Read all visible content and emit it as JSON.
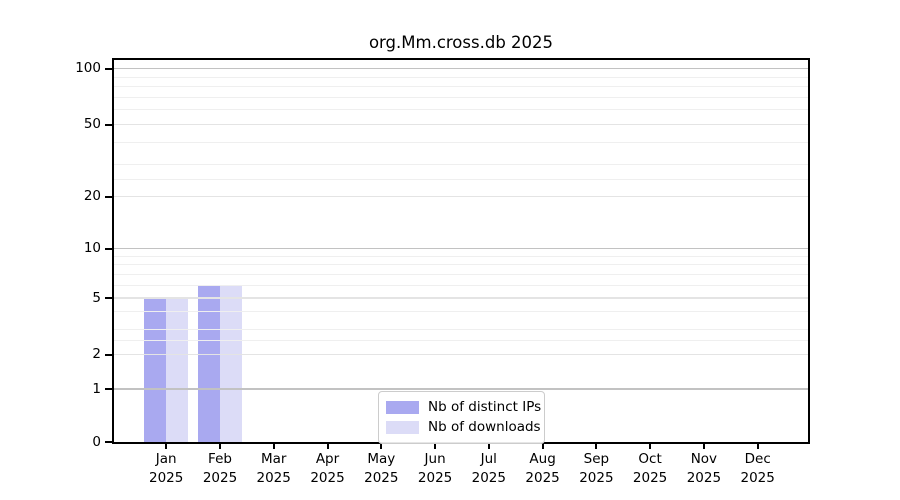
{
  "title": "org.Mm.cross.db 2025",
  "colors": {
    "distinct_ips_bar": "#a9a9f0",
    "downloads_bar": "#dcdcf7",
    "grid_strong": "#c2c2c2",
    "grid_medium": "#e4e4e4",
    "grid_minor": "#efefef",
    "axis": "#000000",
    "legend_border": "#cccccc",
    "background": "#ffffff"
  },
  "chart_data": {
    "type": "bar",
    "title": "org.Mm.cross.db 2025",
    "categories": [
      "Jan",
      "Feb",
      "Mar",
      "Apr",
      "May",
      "Jun",
      "Jul",
      "Aug",
      "Sep",
      "Oct",
      "Nov",
      "Dec"
    ],
    "x_sublabel": "2025",
    "series": [
      {
        "name": "Nb of distinct IPs",
        "color": "#a9a9f0",
        "values": [
          5,
          6,
          0,
          0,
          0,
          0,
          0,
          0,
          0,
          0,
          0,
          0
        ]
      },
      {
        "name": "Nb of downloads",
        "color": "#dcdcf7",
        "values": [
          5,
          6,
          0,
          0,
          0,
          0,
          0,
          0,
          0,
          0,
          0,
          0
        ]
      }
    ],
    "y_ticks": [
      0,
      1,
      2,
      5,
      10,
      20,
      50,
      100
    ],
    "y_grid_strong": [
      1,
      10,
      100
    ],
    "y_grid_minor": [
      2.5,
      3,
      4,
      6,
      7,
      8,
      9,
      25,
      30,
      40,
      60,
      70,
      80,
      90
    ],
    "scale": "log-like",
    "ylim": [
      0,
      116
    ],
    "xlabel": "",
    "ylabel": "",
    "grid": true,
    "legend_position": "bottom-center"
  }
}
